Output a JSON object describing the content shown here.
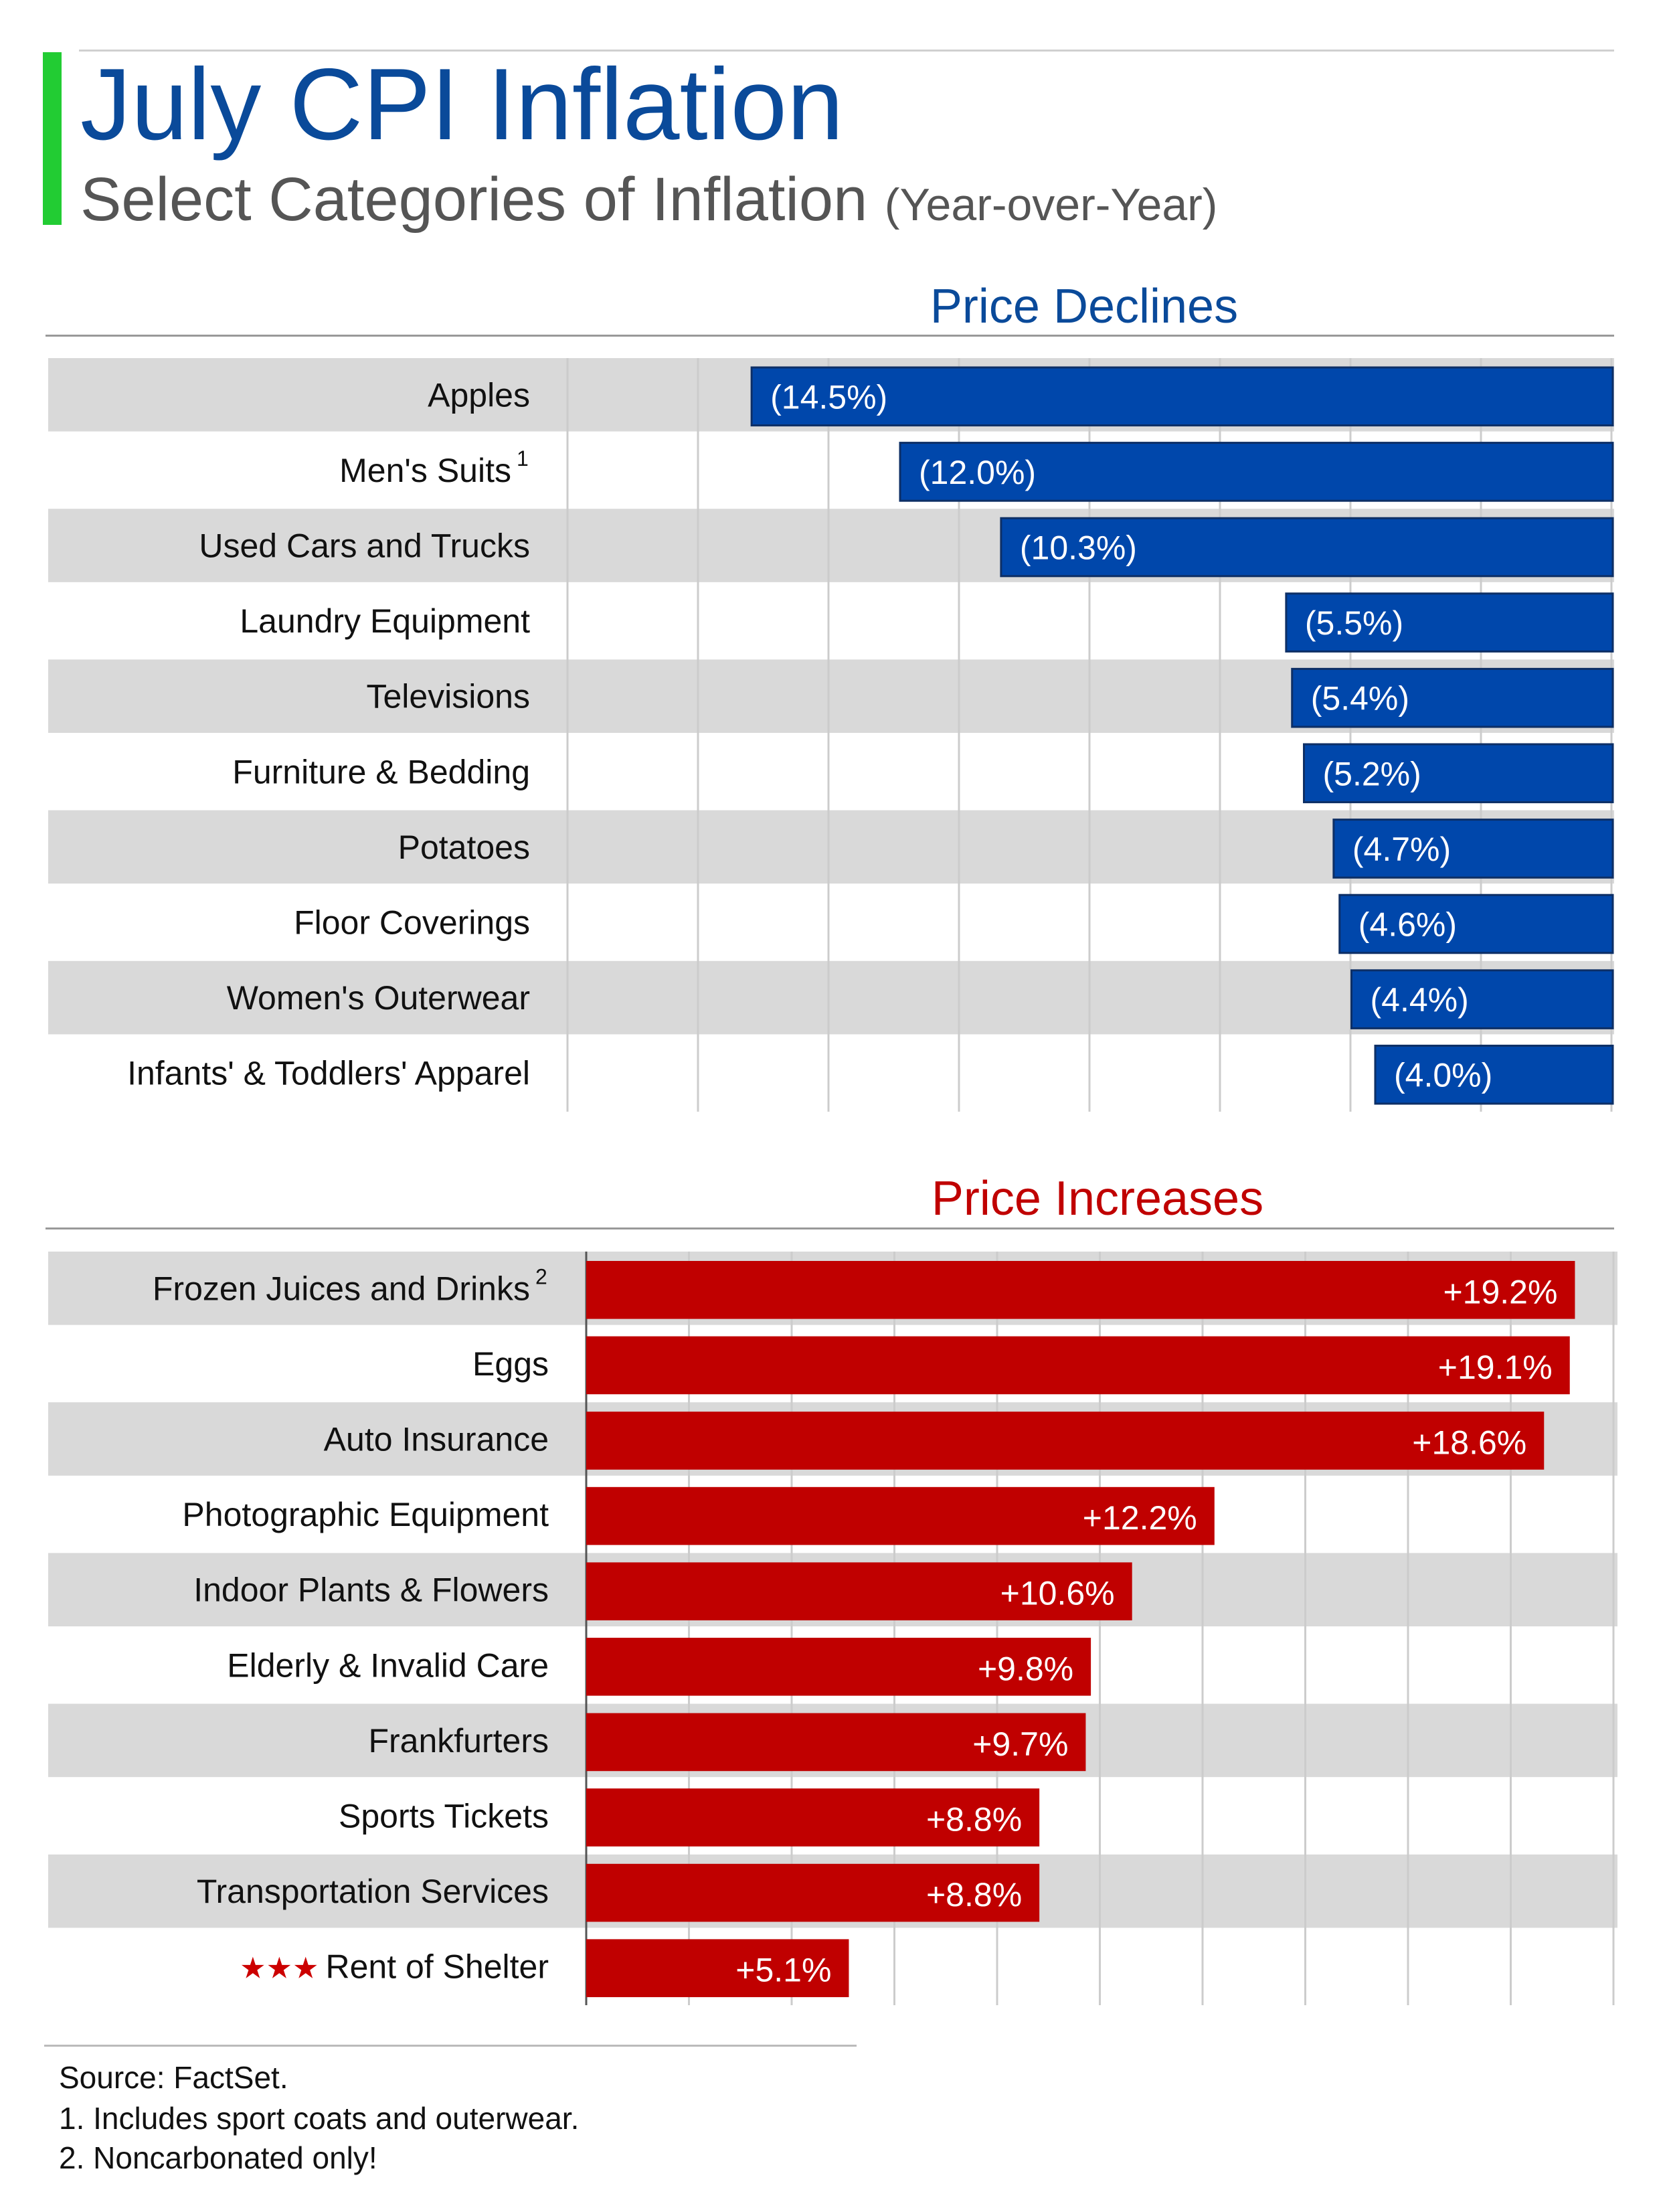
{
  "title": "July CPI Inflation",
  "subtitle": "Select Categories of Inflation",
  "subtitle_paren": "(Year-over-Year)",
  "colors": {
    "accent": "#22cc33",
    "title": "#0a4a9a",
    "decline": "#0047ab",
    "decline_heading": "#0a4a9a",
    "increase": "#c00000",
    "increase_heading": "#c00000",
    "row_band": "#d9d9d9",
    "grid": "#cccccc",
    "star": "#cc0000"
  },
  "chart_data": [
    {
      "type": "bar",
      "orientation": "horizontal",
      "title": "Price Declines",
      "unit": "% year-over-year",
      "categories": [
        "Apples",
        "Men's Suits",
        "Used Cars and Trucks",
        "Laundry Equipment",
        "Televisions",
        "Furniture & Bedding",
        "Potatoes",
        "Floor Coverings",
        "Women's Outerwear",
        "Infants' & Toddlers' Apparel"
      ],
      "values": [
        -14.5,
        -12.0,
        -10.3,
        -5.5,
        -5.4,
        -5.2,
        -4.7,
        -4.6,
        -4.4,
        -4.0
      ],
      "labels": [
        "(14.5%)",
        "(12.0%)",
        "(10.3%)",
        "(5.5%)",
        "(5.4%)",
        "(5.2%)",
        "(4.7%)",
        "(4.6%)",
        "(4.4%)",
        "(4.0%)"
      ],
      "superscripts": [
        "",
        "1",
        "",
        "",
        "",
        "",
        "",
        "",
        "",
        ""
      ],
      "prefix_marks": [
        "",
        "",
        "",
        "",
        "",
        "",
        "",
        "",
        "",
        ""
      ],
      "xlim": [
        -16,
        0
      ],
      "grid": true
    },
    {
      "type": "bar",
      "orientation": "horizontal",
      "title": "Price Increases",
      "unit": "% year-over-year",
      "categories": [
        "Frozen Juices and Drinks",
        "Eggs",
        "Auto Insurance",
        "Photographic Equipment",
        "Indoor Plants & Flowers",
        "Elderly & Invalid Care",
        "Frankfurters",
        "Sports Tickets",
        "Transportation Services",
        "Rent of Shelter"
      ],
      "values": [
        19.2,
        19.1,
        18.6,
        12.2,
        10.6,
        9.8,
        9.7,
        8.8,
        8.8,
        5.1
      ],
      "labels": [
        "+19.2%",
        "+19.1%",
        "+18.6%",
        "+12.2%",
        "+10.6%",
        "+9.8%",
        "+9.7%",
        "+8.8%",
        "+8.8%",
        "+5.1%"
      ],
      "superscripts": [
        "2",
        "",
        "",
        "",
        "",
        "",
        "",
        "",
        "",
        ""
      ],
      "prefix_marks": [
        "",
        "",
        "",
        "",
        "",
        "",
        "",
        "",
        "",
        "★★★"
      ],
      "xlim": [
        0,
        20
      ],
      "grid": true
    }
  ],
  "notes": {
    "source": "Source: FactSet.",
    "note1": "1. Includes sport coats and outerwear.",
    "note2": "2. Noncarbonated only!"
  }
}
